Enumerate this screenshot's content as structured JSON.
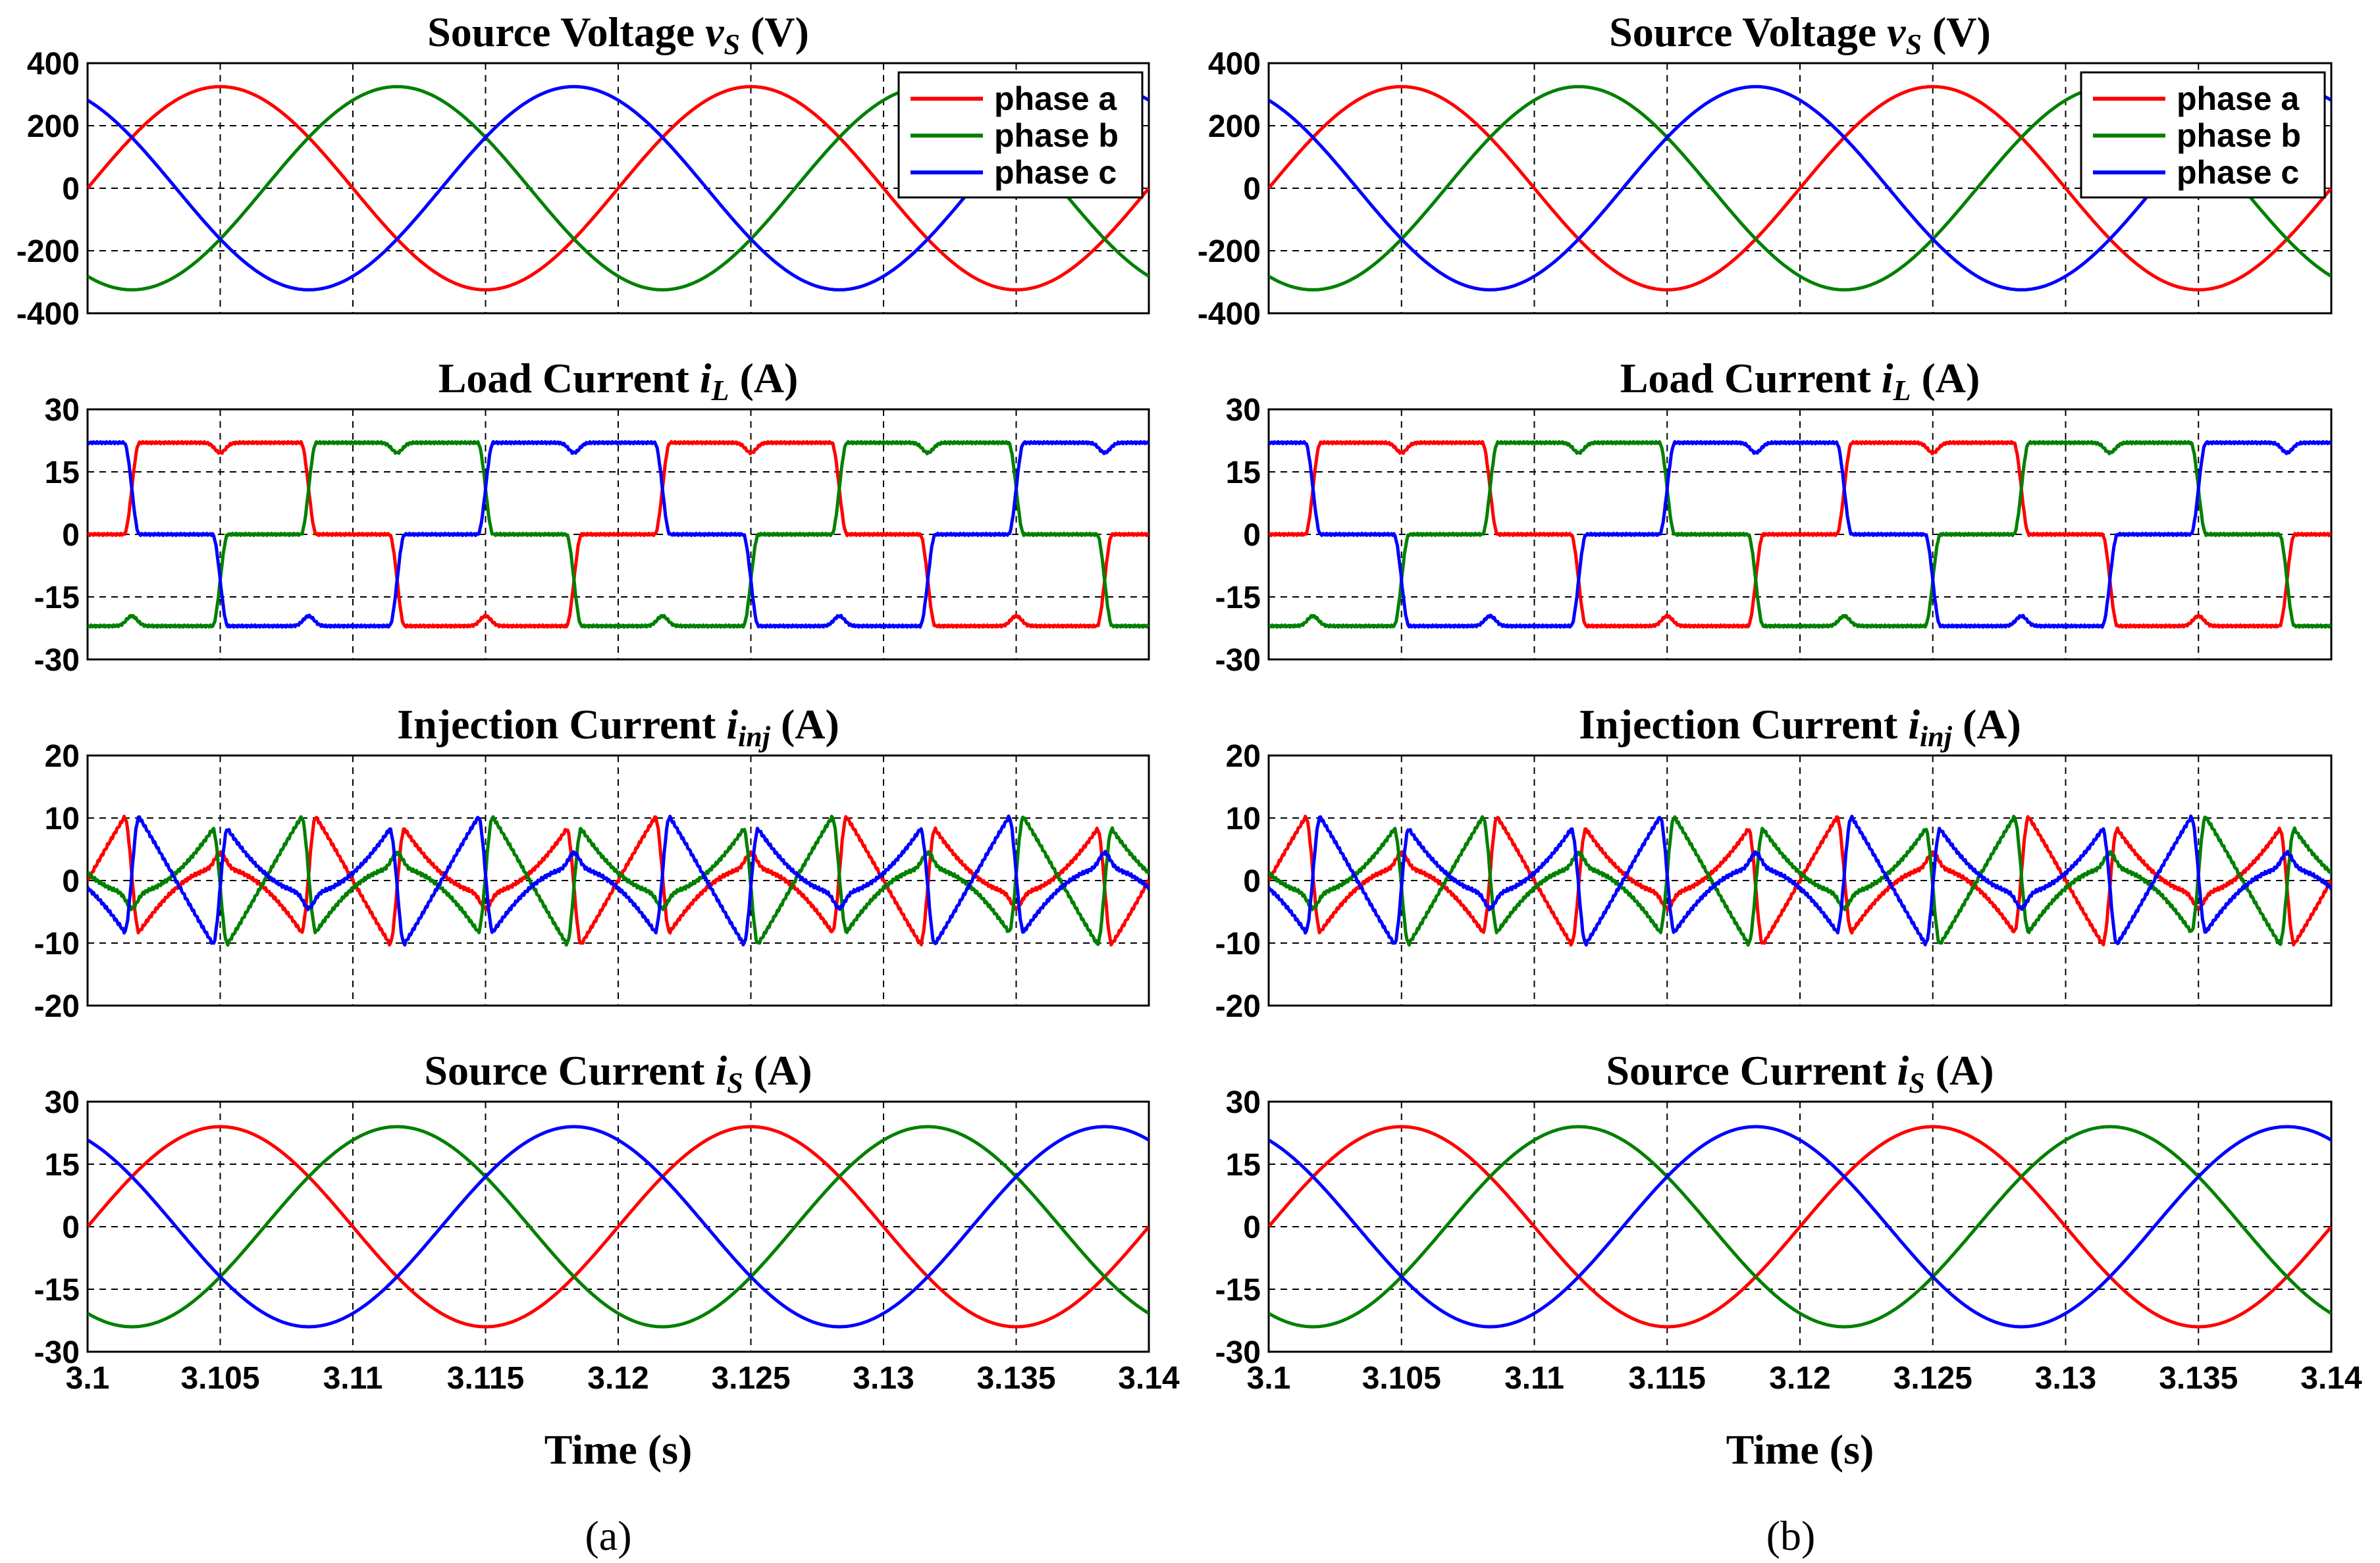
{
  "figure_labels": [
    "(a)",
    "(b)"
  ],
  "chart_data": [
    {
      "type": "line",
      "panel": "(a)",
      "title": "Source Voltage v_S (V)",
      "title_parts": {
        "pre": "Source Voltage ",
        "sym": "v",
        "sub": "S",
        "post": " (V)"
      },
      "xlabel": "",
      "ylabel": "",
      "xlim": [
        3.1,
        3.14
      ],
      "ylim": [
        -400,
        400
      ],
      "yticks": [
        400,
        200,
        0,
        -200,
        -400
      ],
      "ytick_labels": [
        "400",
        "200",
        "0",
        "-200",
        "-400"
      ],
      "xticks": [
        3.1,
        3.105,
        3.11,
        3.115,
        3.12,
        3.125,
        3.13,
        3.135,
        3.14
      ],
      "grid": true,
      "legend": {
        "position": "top-right",
        "entries": [
          "phase a",
          "phase b",
          "phase c"
        ]
      },
      "waveform": "sine",
      "fundamental_hz": 50,
      "amplitude": 325,
      "series": [
        {
          "name": "phase a",
          "color": "#ff0000",
          "phase_deg": 0
        },
        {
          "name": "phase b",
          "color": "#008000",
          "phase_deg": -120
        },
        {
          "name": "phase c",
          "color": "#0000ff",
          "phase_deg": 120
        }
      ]
    },
    {
      "type": "line",
      "panel": "(a)",
      "title": "Load Current i_L (A)",
      "title_parts": {
        "pre": "Load Current ",
        "sym": "i",
        "sub": "L",
        "post": " (A)"
      },
      "xlabel": "",
      "ylabel": "",
      "xlim": [
        3.1,
        3.14
      ],
      "ylim": [
        -30,
        30
      ],
      "yticks": [
        30,
        15,
        0,
        -15,
        -30
      ],
      "ytick_labels": [
        "30",
        "15",
        "0",
        "-15",
        "-30"
      ],
      "xticks": [
        3.1,
        3.105,
        3.11,
        3.115,
        3.12,
        3.125,
        3.13,
        3.135,
        3.14
      ],
      "grid": true,
      "waveform": "six-pulse quasi-square",
      "fundamental_hz": 50,
      "amplitude": 22,
      "series": [
        {
          "name": "phase a",
          "color": "#ff0000",
          "phase_deg": 0
        },
        {
          "name": "phase b",
          "color": "#008000",
          "phase_deg": -120
        },
        {
          "name": "phase c",
          "color": "#0000ff",
          "phase_deg": 120
        }
      ]
    },
    {
      "type": "line",
      "panel": "(a)",
      "title": "Injection Current i_inj (A)",
      "title_parts": {
        "pre": "Injection Current ",
        "sym": "i",
        "sub": "inj",
        "post": " (A)"
      },
      "xlabel": "",
      "ylabel": "",
      "xlim": [
        3.1,
        3.14
      ],
      "ylim": [
        -20,
        20
      ],
      "yticks": [
        20,
        10,
        0,
        -10,
        -20
      ],
      "ytick_labels": [
        "20",
        "10",
        "0",
        "-10",
        "-20"
      ],
      "xticks": [
        3.1,
        3.105,
        3.11,
        3.115,
        3.12,
        3.125,
        3.13,
        3.135,
        3.14
      ],
      "grid": true,
      "waveform": "harmonic compensation (i_S - i_L)",
      "peak_range": [
        -12,
        12
      ],
      "fundamental_hz": 50,
      "series": [
        {
          "name": "phase a",
          "color": "#ff0000",
          "phase_deg": 0
        },
        {
          "name": "phase b",
          "color": "#008000",
          "phase_deg": -120
        },
        {
          "name": "phase c",
          "color": "#0000ff",
          "phase_deg": 120
        }
      ]
    },
    {
      "type": "line",
      "panel": "(a)",
      "title": "Source Current i_S (A)",
      "title_parts": {
        "pre": "Source Current ",
        "sym": "i",
        "sub": "S",
        "post": " (A)"
      },
      "xlabel": "Time (s)",
      "ylabel": "",
      "xlim": [
        3.1,
        3.14
      ],
      "ylim": [
        -30,
        30
      ],
      "yticks": [
        30,
        15,
        0,
        -15,
        -30
      ],
      "ytick_labels": [
        "30",
        "15",
        "0",
        "-15",
        "-30"
      ],
      "xticks": [
        3.1,
        3.105,
        3.11,
        3.115,
        3.12,
        3.125,
        3.13,
        3.135,
        3.14
      ],
      "xtick_labels": [
        "3.1",
        "3.105",
        "3.11",
        "3.115",
        "3.12",
        "3.125",
        "3.13",
        "3.135",
        "3.14"
      ],
      "grid": true,
      "waveform": "sine",
      "fundamental_hz": 50,
      "amplitude": 24,
      "series": [
        {
          "name": "phase a",
          "color": "#ff0000",
          "phase_deg": 0
        },
        {
          "name": "phase b",
          "color": "#008000",
          "phase_deg": -120
        },
        {
          "name": "phase c",
          "color": "#0000ff",
          "phase_deg": 120
        }
      ]
    },
    {
      "type": "line",
      "panel": "(b)",
      "title": "Source Voltage v_S (V)",
      "title_parts": {
        "pre": "Source Voltage ",
        "sym": "v",
        "sub": "S",
        "post": " (V)"
      },
      "xlabel": "",
      "ylabel": "",
      "xlim": [
        3.1,
        3.14
      ],
      "ylim": [
        -400,
        400
      ],
      "yticks": [
        400,
        200,
        0,
        -200,
        -400
      ],
      "ytick_labels": [
        "400",
        "200",
        "0",
        "-200",
        "-400"
      ],
      "xticks": [
        3.1,
        3.105,
        3.11,
        3.115,
        3.12,
        3.125,
        3.13,
        3.135,
        3.14
      ],
      "grid": true,
      "legend": {
        "position": "top-right",
        "entries": [
          "phase a",
          "phase b",
          "phase c"
        ]
      },
      "waveform": "sine",
      "fundamental_hz": 50,
      "amplitude": 325,
      "series": [
        {
          "name": "phase a",
          "color": "#ff0000",
          "phase_deg": 0
        },
        {
          "name": "phase b",
          "color": "#008000",
          "phase_deg": -120
        },
        {
          "name": "phase c",
          "color": "#0000ff",
          "phase_deg": 120
        }
      ]
    },
    {
      "type": "line",
      "panel": "(b)",
      "title": "Load Current i_L (A)",
      "title_parts": {
        "pre": "Load Current ",
        "sym": "i",
        "sub": "L",
        "post": " (A)"
      },
      "xlabel": "",
      "ylabel": "",
      "xlim": [
        3.1,
        3.14
      ],
      "ylim": [
        -30,
        30
      ],
      "yticks": [
        30,
        15,
        0,
        -15,
        -30
      ],
      "ytick_labels": [
        "30",
        "15",
        "0",
        "-15",
        "-30"
      ],
      "xticks": [
        3.1,
        3.105,
        3.11,
        3.115,
        3.12,
        3.125,
        3.13,
        3.135,
        3.14
      ],
      "grid": true,
      "waveform": "six-pulse quasi-square",
      "fundamental_hz": 50,
      "amplitude": 22,
      "series": [
        {
          "name": "phase a",
          "color": "#ff0000",
          "phase_deg": 0
        },
        {
          "name": "phase b",
          "color": "#008000",
          "phase_deg": -120
        },
        {
          "name": "phase c",
          "color": "#0000ff",
          "phase_deg": 120
        }
      ]
    },
    {
      "type": "line",
      "panel": "(b)",
      "title": "Injection Current i_inj (A)",
      "title_parts": {
        "pre": "Injection Current ",
        "sym": "i",
        "sub": "inj",
        "post": " (A)"
      },
      "xlabel": "",
      "ylabel": "",
      "xlim": [
        3.1,
        3.14
      ],
      "ylim": [
        -20,
        20
      ],
      "yticks": [
        20,
        10,
        0,
        -10,
        -20
      ],
      "ytick_labels": [
        "20",
        "10",
        "0",
        "-10",
        "-20"
      ],
      "xticks": [
        3.1,
        3.105,
        3.11,
        3.115,
        3.12,
        3.125,
        3.13,
        3.135,
        3.14
      ],
      "grid": true,
      "waveform": "harmonic compensation (i_S - i_L)",
      "peak_range": [
        -12,
        12
      ],
      "fundamental_hz": 50,
      "series": [
        {
          "name": "phase a",
          "color": "#ff0000",
          "phase_deg": 0
        },
        {
          "name": "phase b",
          "color": "#008000",
          "phase_deg": -120
        },
        {
          "name": "phase c",
          "color": "#0000ff",
          "phase_deg": 120
        }
      ]
    },
    {
      "type": "line",
      "panel": "(b)",
      "title": "Source Current i_S (A)",
      "title_parts": {
        "pre": "Source Current ",
        "sym": "i",
        "sub": "S",
        "post": " (A)"
      },
      "xlabel": "Time (s)",
      "ylabel": "",
      "xlim": [
        3.1,
        3.14
      ],
      "ylim": [
        -30,
        30
      ],
      "yticks": [
        30,
        15,
        0,
        -15,
        -30
      ],
      "ytick_labels": [
        "30",
        "15",
        "0",
        "-15",
        "-30"
      ],
      "xticks": [
        3.1,
        3.105,
        3.11,
        3.115,
        3.12,
        3.125,
        3.13,
        3.135,
        3.14
      ],
      "xtick_labels": [
        "3.1",
        "3.105",
        "3.11",
        "3.115",
        "3.12",
        "3.125",
        "3.13",
        "3.135",
        "3.14"
      ],
      "grid": true,
      "waveform": "sine",
      "fundamental_hz": 50,
      "amplitude": 24,
      "series": [
        {
          "name": "phase a",
          "color": "#ff0000",
          "phase_deg": 0
        },
        {
          "name": "phase b",
          "color": "#008000",
          "phase_deg": -120
        },
        {
          "name": "phase c",
          "color": "#0000ff",
          "phase_deg": 120
        }
      ]
    }
  ]
}
